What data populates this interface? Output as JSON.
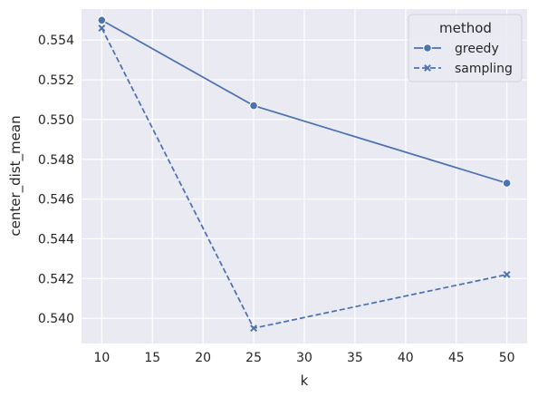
{
  "chart_data": {
    "type": "line",
    "xlabel": "k",
    "ylabel": "center_dist_mean",
    "x_ticks": [
      10,
      15,
      20,
      25,
      30,
      35,
      40,
      45,
      50
    ],
    "y_ticks": [
      0.54,
      0.542,
      0.544,
      0.546,
      0.548,
      0.55,
      0.552,
      0.554
    ],
    "xlim": [
      8.0,
      52.0
    ],
    "ylim": [
      0.53873,
      0.55556
    ],
    "grid": true,
    "legend": {
      "title": "method",
      "placement": "top-right"
    },
    "series": [
      {
        "name": "greedy",
        "x": [
          10,
          25,
          50
        ],
        "values": [
          0.555,
          0.5507,
          0.5468
        ],
        "line_style": "solid",
        "marker": "circle",
        "color": "#4c72b0"
      },
      {
        "name": "sampling",
        "x": [
          10,
          25,
          50
        ],
        "values": [
          0.5546,
          0.5395,
          0.5422
        ],
        "line_style": "dashed",
        "marker": "x",
        "color": "#4c72b0"
      }
    ],
    "background_color": "#eaeaf2",
    "grid_color": "#ffffff"
  }
}
